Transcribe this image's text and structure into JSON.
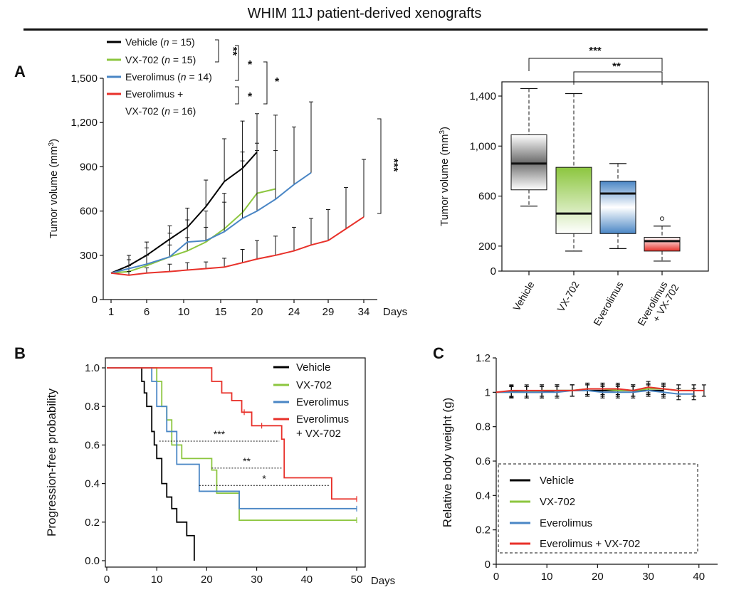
{
  "figure": {
    "title": "WHIM 11J patient-derived xenografts",
    "panel_labels": [
      "A",
      "B",
      "C"
    ]
  },
  "colors": {
    "Vehicle": "#000000",
    "VX-702": "#8cc63f",
    "Everolimus": "#4a86c5",
    "Combo": "#e8312a"
  },
  "chart_data": [
    {
      "id": "A_growth",
      "type": "line",
      "xlabel": "Days",
      "ylabel": "Tumor volume (mm3)",
      "ylim": [
        0,
        1500
      ],
      "xticks": [
        1,
        6,
        10,
        15,
        20,
        24,
        29,
        34
      ],
      "yticks": [
        0,
        300,
        600,
        900,
        1200,
        1500
      ],
      "ytick_labels": [
        "0",
        "300",
        "600",
        "900",
        "1,200",
        "1,500"
      ],
      "legend": [
        {
          "name": "Vehicle",
          "n": "15",
          "lines": [
            "Vehicle (",
            "n",
            " = 15)"
          ]
        },
        {
          "name": "VX-702",
          "n": "15",
          "lines": [
            "VX-702 (",
            "n",
            " = 15)"
          ]
        },
        {
          "name": "Everolimus",
          "n": "14",
          "lines": [
            "Everolimus (",
            "n",
            " = 14)"
          ]
        },
        {
          "name": "Everolimus + VX-702",
          "n": "16",
          "lines": [
            "Everolimus +",
            "VX-702 (",
            "n",
            " = 16)"
          ]
        }
      ],
      "significance": [
        "**",
        "*",
        "*",
        "*",
        "***"
      ],
      "series": [
        {
          "name": "Vehicle",
          "x": [
            1,
            3.5,
            6,
            8.5,
            10.5,
            13,
            15.5,
            18,
            20
          ],
          "y": [
            180,
            230,
            300,
            410,
            490,
            630,
            800,
            890,
            1000
          ],
          "err": [
            180,
            300,
            390,
            500,
            620,
            810,
            1090,
            1210,
            1260
          ]
        },
        {
          "name": "VX-702",
          "x": [
            1,
            3.5,
            6,
            8.5,
            10.5,
            13,
            15.5,
            18,
            20,
            22
          ],
          "y": [
            180,
            190,
            230,
            290,
            330,
            390,
            480,
            590,
            720,
            750
          ],
          "err": [
            180,
            230,
            300,
            370,
            420,
            490,
            720,
            940,
            1010,
            1250
          ]
        },
        {
          "name": "Everolimus",
          "x": [
            1,
            3.5,
            6,
            8.5,
            10.5,
            13,
            15.5,
            18,
            20,
            22,
            24,
            26.5
          ],
          "y": [
            180,
            210,
            240,
            290,
            390,
            400,
            460,
            550,
            600,
            680,
            780,
            860
          ],
          "err": [
            180,
            270,
            350,
            450,
            540,
            600,
            660,
            1000,
            1060,
            1010,
            1170,
            1340
          ]
        },
        {
          "name": "Everolimus + VX-702",
          "x": [
            1,
            3.5,
            6,
            8.5,
            10.5,
            13,
            15.5,
            18,
            20,
            22,
            24,
            26.5,
            29,
            31.5,
            34
          ],
          "y": [
            180,
            165,
            180,
            190,
            200,
            210,
            220,
            250,
            275,
            300,
            330,
            370,
            400,
            480,
            560
          ],
          "err": [
            180,
            190,
            215,
            240,
            250,
            255,
            280,
            340,
            400,
            430,
            490,
            550,
            610,
            760,
            950
          ]
        }
      ]
    },
    {
      "id": "A_box",
      "type": "box",
      "ylabel": "Tumor volume (mm3)",
      "yticks": [
        0,
        200,
        600,
        1000,
        1400
      ],
      "ytick_labels": [
        "0",
        "200",
        "600",
        "1,000",
        "1,400"
      ],
      "ylim": [
        0,
        1550
      ],
      "categories": [
        "Vehicle",
        "VX-702",
        "Everolimus",
        "Everolimus + VX-702"
      ],
      "category_lines": [
        [
          "Vehicle"
        ],
        [
          "VX-702"
        ],
        [
          "Everolimus"
        ],
        [
          "Everolimus",
          "+ VX-702"
        ]
      ],
      "boxes": [
        {
          "min": 520,
          "q1": 650,
          "median": 860,
          "q3": 1090,
          "max": 1460
        },
        {
          "min": 160,
          "q1": 300,
          "median": 460,
          "q3": 830,
          "max": 1420
        },
        {
          "min": 180,
          "q1": 300,
          "median": 620,
          "q3": 720,
          "max": 860
        },
        {
          "min": 80,
          "q1": 160,
          "median": 240,
          "q3": 270,
          "max": 360,
          "outliers": [
            420
          ]
        }
      ],
      "brackets": [
        {
          "from": 0,
          "to": 3,
          "label": "***"
        },
        {
          "from": 1,
          "to": 3,
          "label": "**"
        }
      ]
    },
    {
      "id": "B_km",
      "type": "step",
      "xlabel": "Days",
      "ylabel": "Progression-free probability",
      "xlim": [
        0,
        50
      ],
      "ylim": [
        0,
        1
      ],
      "xticks": [
        0,
        10,
        20,
        30,
        40,
        50
      ],
      "yticks": [
        0,
        0.2,
        0.4,
        0.6,
        0.8,
        1.0
      ],
      "ytick_labels": [
        "0.0",
        "0.2",
        "0.4",
        "0.6",
        "0.8",
        "1.0"
      ],
      "legend_lines": [
        [
          "Vehicle"
        ],
        [
          "VX-702"
        ],
        [
          "Everolimus"
        ],
        [
          "Everolimus",
          "+ VX-702"
        ]
      ],
      "series": [
        {
          "name": "Vehicle",
          "x": [
            0,
            7,
            7.5,
            8,
            9,
            9.5,
            10,
            11,
            12,
            13,
            14,
            16,
            17.5
          ],
          "y": [
            1,
            0.93,
            0.87,
            0.8,
            0.67,
            0.6,
            0.53,
            0.4,
            0.33,
            0.27,
            0.2,
            0.13,
            0.07
          ],
          "end_x": 17.5,
          "end_y": 0.0
        },
        {
          "name": "VX-702",
          "x": [
            0,
            10,
            11,
            12,
            13,
            15,
            21,
            22,
            26.5
          ],
          "y": [
            1,
            0.93,
            0.8,
            0.73,
            0.6,
            0.53,
            0.47,
            0.35,
            0.21
          ],
          "end_x": 50,
          "censor": [
            50
          ]
        },
        {
          "name": "Everolimus",
          "x": [
            0,
            9,
            10,
            12,
            14,
            18.5,
            26.5
          ],
          "y": [
            1,
            0.93,
            0.8,
            0.67,
            0.5,
            0.36,
            0.27
          ],
          "end_x": 50,
          "censor": [
            50
          ]
        },
        {
          "name": "Everolimus + VX-702",
          "x": [
            0,
            21,
            23,
            25,
            27,
            29,
            35,
            35.5,
            45
          ],
          "y": [
            1,
            0.93,
            0.87,
            0.83,
            0.77,
            0.7,
            0.63,
            0.43,
            0.32
          ],
          "end_x": 50,
          "censor": [
            27.5,
            31,
            50
          ]
        }
      ],
      "annotations": [
        {
          "label": "***",
          "y": 0.62,
          "x1": 10.5,
          "x2": 34.5
        },
        {
          "label": "**",
          "y": 0.48,
          "x1": 21,
          "x2": 35
        },
        {
          "label": "*",
          "y": 0.39,
          "x1": 18.5,
          "x2": 44.5
        }
      ]
    },
    {
      "id": "C_weight",
      "type": "line",
      "ylabel": "Relative body weight (g)",
      "xlim": [
        0,
        42
      ],
      "ylim": [
        0,
        1.2
      ],
      "xticks": [
        0,
        10,
        20,
        30,
        40
      ],
      "yticks": [
        0,
        0.2,
        0.4,
        0.6,
        0.8,
        1.0,
        1.2
      ],
      "ytick_labels": [
        "0",
        "0.2",
        "0.4",
        "0.6",
        "0.8",
        "1",
        "1.2"
      ],
      "legend": [
        "Vehicle",
        "VX-702",
        "Everolimus",
        "Everolimus + VX-702"
      ],
      "series": [
        {
          "name": "Vehicle",
          "x": [
            0,
            3,
            6,
            9,
            12,
            15,
            18,
            21,
            24,
            27,
            30,
            33
          ],
          "y": [
            1,
            1.005,
            1.0,
            1.0,
            1.01,
            1.01,
            1.01,
            1.01,
            1.01,
            1.01,
            1.01,
            1.01
          ]
        },
        {
          "name": "VX-702",
          "x": [
            0,
            3,
            6,
            9,
            12,
            15,
            18,
            21,
            24,
            27,
            30,
            33,
            36,
            39
          ],
          "y": [
            1,
            1.0,
            1.0,
            1.01,
            1.01,
            1.01,
            1.02,
            1.02,
            1.01,
            1.01,
            1.02,
            1.02,
            1.01,
            1.01
          ]
        },
        {
          "name": "Everolimus",
          "x": [
            0,
            3,
            6,
            9,
            12,
            15,
            18,
            21,
            24,
            27,
            30,
            33,
            36,
            39
          ],
          "y": [
            1,
            1.0,
            1.0,
            1.0,
            1.0,
            1.01,
            1.01,
            1.0,
            1.0,
            1.0,
            1.01,
            1.0,
            0.99,
            0.99
          ]
        },
        {
          "name": "Everolimus + VX-702",
          "x": [
            0,
            3,
            6,
            9,
            12,
            15,
            18,
            21,
            24,
            27,
            30,
            33,
            36,
            39,
            41
          ],
          "y": [
            1,
            1.01,
            1.01,
            1.01,
            1.01,
            1.01,
            1.02,
            1.02,
            1.02,
            1.01,
            1.03,
            1.02,
            1.01,
            1.01,
            1.01
          ]
        }
      ]
    }
  ]
}
